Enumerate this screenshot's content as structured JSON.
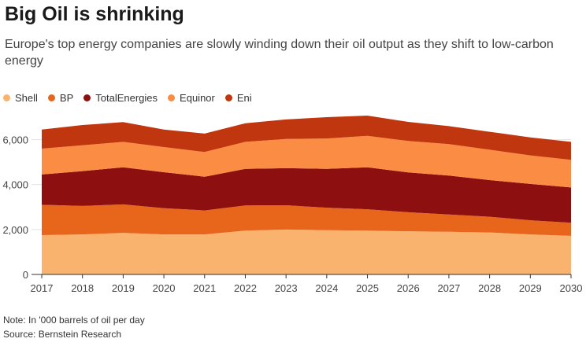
{
  "title": "Big Oil is shrinking",
  "subtitle": "Europe's top energy companies are slowly winding down their oil output as they shift to low-carbon energy",
  "note": "Note: In '000 barrels of oil per day",
  "source": "Source: Bernstein Research",
  "chart_data": {
    "type": "area",
    "stacked": true,
    "title": "Big Oil is shrinking",
    "subtitle": "Europe's top energy companies are slowly winding down their oil output as they shift to low-carbon energy",
    "xlabel": "",
    "ylabel": "",
    "x": [
      "2017",
      "2018",
      "2019",
      "2020",
      "2021",
      "2022",
      "2023",
      "2024",
      "2025",
      "2026",
      "2027",
      "2028",
      "2029",
      "2030"
    ],
    "ylim": [
      0,
      7000
    ],
    "yticks": [
      0,
      2000,
      4000,
      6000
    ],
    "ytick_labels": [
      "0",
      "2,000",
      "4,000",
      "6,000"
    ],
    "grid": true,
    "legend": "top-left",
    "series": [
      {
        "name": "Shell",
        "color": "#F9B36E",
        "values": [
          1750,
          1780,
          1850,
          1780,
          1780,
          1950,
          2000,
          1970,
          1950,
          1920,
          1900,
          1870,
          1780,
          1720
        ]
      },
      {
        "name": "BP",
        "color": "#E8651C",
        "values": [
          1350,
          1270,
          1270,
          1170,
          1070,
          1120,
          1080,
          1000,
          950,
          850,
          770,
          700,
          630,
          580
        ]
      },
      {
        "name": "TotalEnergies",
        "color": "#8E0F0F",
        "values": [
          1350,
          1550,
          1650,
          1600,
          1500,
          1630,
          1650,
          1730,
          1870,
          1770,
          1730,
          1630,
          1620,
          1570
        ]
      },
      {
        "name": "Equinor",
        "color": "#FB8C43",
        "values": [
          1150,
          1150,
          1130,
          1120,
          1100,
          1200,
          1300,
          1350,
          1400,
          1400,
          1400,
          1350,
          1270,
          1230
        ]
      },
      {
        "name": "Eni",
        "color": "#C0360E",
        "values": [
          850,
          900,
          880,
          780,
          820,
          830,
          870,
          950,
          900,
          850,
          800,
          800,
          800,
          800
        ]
      }
    ]
  }
}
